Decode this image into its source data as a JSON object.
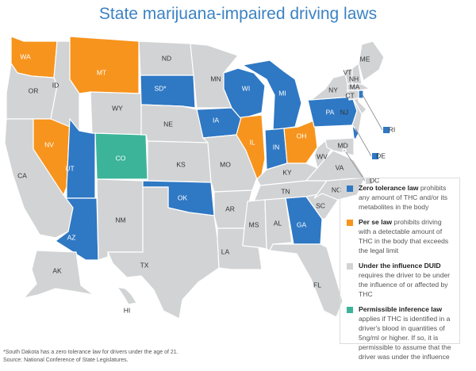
{
  "title": "State marijuana-impaired driving laws",
  "colors": {
    "zero": "#2f78c4",
    "perse": "#f7941d",
    "duid": "#d1d3d4",
    "inference": "#3cb49a"
  },
  "states": [
    {
      "abbr": "WA",
      "law": "perse"
    },
    {
      "abbr": "OR",
      "law": "duid"
    },
    {
      "abbr": "CA",
      "law": "duid"
    },
    {
      "abbr": "NV",
      "law": "perse"
    },
    {
      "abbr": "ID",
      "law": "duid"
    },
    {
      "abbr": "MT",
      "law": "perse"
    },
    {
      "abbr": "WY",
      "law": "duid"
    },
    {
      "abbr": "UT",
      "law": "zero"
    },
    {
      "abbr": "CO",
      "law": "inference"
    },
    {
      "abbr": "AZ",
      "law": "zero"
    },
    {
      "abbr": "NM",
      "law": "duid"
    },
    {
      "abbr": "ND",
      "law": "duid"
    },
    {
      "abbr": "SD*",
      "law": "zero"
    },
    {
      "abbr": "NE",
      "law": "duid"
    },
    {
      "abbr": "KS",
      "law": "duid"
    },
    {
      "abbr": "OK",
      "law": "zero"
    },
    {
      "abbr": "TX",
      "law": "duid"
    },
    {
      "abbr": "MN",
      "law": "duid"
    },
    {
      "abbr": "IA",
      "law": "zero"
    },
    {
      "abbr": "MO",
      "law": "duid"
    },
    {
      "abbr": "AR",
      "law": "duid"
    },
    {
      "abbr": "LA",
      "law": "duid"
    },
    {
      "abbr": "WI",
      "law": "zero"
    },
    {
      "abbr": "IL",
      "law": "perse"
    },
    {
      "abbr": "MI",
      "law": "zero"
    },
    {
      "abbr": "IN",
      "law": "zero"
    },
    {
      "abbr": "OH",
      "law": "perse"
    },
    {
      "abbr": "KY",
      "law": "duid"
    },
    {
      "abbr": "TN",
      "law": "duid"
    },
    {
      "abbr": "MS",
      "law": "duid"
    },
    {
      "abbr": "AL",
      "law": "duid"
    },
    {
      "abbr": "GA",
      "law": "zero"
    },
    {
      "abbr": "FL",
      "law": "duid"
    },
    {
      "abbr": "SC",
      "law": "duid"
    },
    {
      "abbr": "NC",
      "law": "duid"
    },
    {
      "abbr": "VA",
      "law": "duid"
    },
    {
      "abbr": "WV",
      "law": "duid"
    },
    {
      "abbr": "PA",
      "law": "zero"
    },
    {
      "abbr": "NY",
      "law": "duid"
    },
    {
      "abbr": "NJ",
      "law": "duid"
    },
    {
      "abbr": "VT",
      "law": "duid"
    },
    {
      "abbr": "NH",
      "law": "duid"
    },
    {
      "abbr": "ME",
      "law": "duid"
    },
    {
      "abbr": "MA",
      "law": "duid"
    },
    {
      "abbr": "CT",
      "law": "duid"
    },
    {
      "abbr": "RI",
      "law": "zero"
    },
    {
      "abbr": "DE",
      "law": "zero"
    },
    {
      "abbr": "MD",
      "law": "duid"
    },
    {
      "abbr": "DC",
      "law": "duid"
    },
    {
      "abbr": "AK",
      "law": "duid"
    },
    {
      "abbr": "HI",
      "law": "duid"
    }
  ],
  "legend": [
    {
      "key": "zero",
      "bold": "Zero tolerance law",
      "text": " prohibits any amount of THC and/or its metabolites in the body"
    },
    {
      "key": "perse",
      "bold": "Per se law",
      "text": " prohibits driving with a detectable amount of THC in the body that exceeds the legal limit"
    },
    {
      "key": "duid",
      "bold": "Under the influence DUID",
      "text": " requires the driver to be under the influence of or affected by THC"
    },
    {
      "key": "inference",
      "bold": "Permissible inference law",
      "text": " applies if THC is identified in a driver's blood in quantities of 5ng/ml or higher. If so, it is permissible to assume that the driver was under the influence"
    }
  ],
  "footnote": "*South Dakota has a zero tolerance law for drivers under the age of 21.",
  "source": "Source: National Conference of State Legislatures."
}
